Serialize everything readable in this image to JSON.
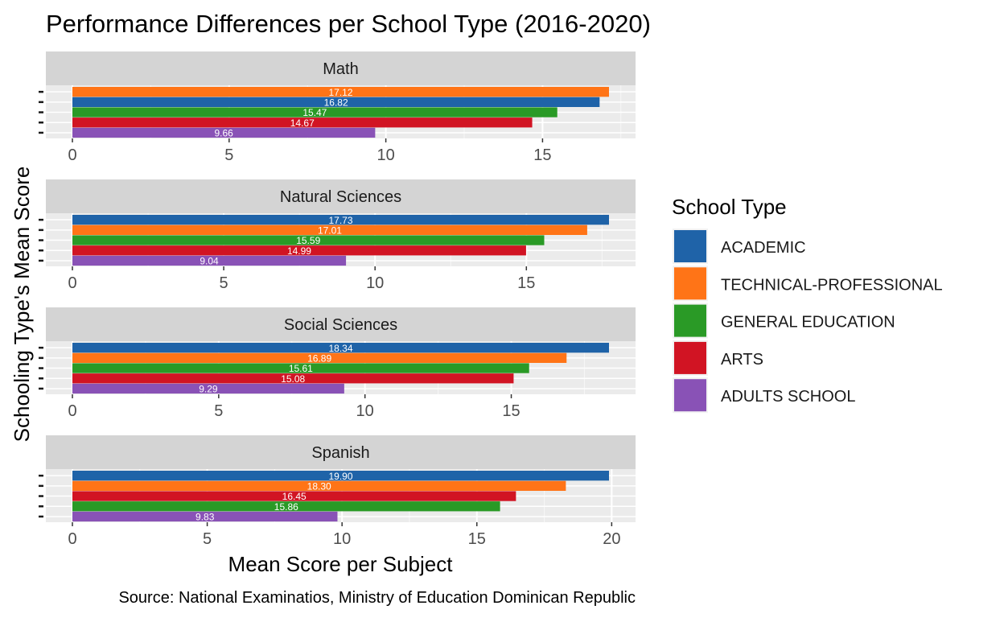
{
  "chart_data": {
    "type": "bar",
    "orientation": "horizontal",
    "faceted": true,
    "title": "Performance Differences per School Type (2016-2020)",
    "xlabel": "Mean Score per Subject",
    "ylabel": "Schooling Type's Mean Score",
    "caption": "Source: National Examinatios, Ministry of Education Dominican Republic",
    "legend": {
      "title": "School Type",
      "position": "right",
      "items": [
        {
          "name": "ACADEMIC",
          "color": "#1F63A8"
        },
        {
          "name": "TECHNICAL-PROFESSIONAL",
          "color": "#FF7417"
        },
        {
          "name": "GENERAL EDUCATION",
          "color": "#2A9A26"
        },
        {
          "name": "ARTS",
          "color": "#D11423"
        },
        {
          "name": "ADULTS SCHOOL",
          "color": "#8952B6"
        }
      ]
    },
    "grid": true,
    "panels": [
      {
        "name": "Math",
        "xlim": [
          0,
          17.12
        ],
        "ticks": [
          "0",
          "5",
          "10",
          "15"
        ],
        "bars": [
          {
            "type": "TECHNICAL-PROFESSIONAL",
            "value": 17.12,
            "label": "17.12"
          },
          {
            "type": "ACADEMIC",
            "value": 16.82,
            "label": "16.82"
          },
          {
            "type": "GENERAL EDUCATION",
            "value": 15.47,
            "label": "15.47"
          },
          {
            "type": "ARTS",
            "value": 14.67,
            "label": "14.67"
          },
          {
            "type": "ADULTS SCHOOL",
            "value": 9.66,
            "label": "9.66"
          }
        ]
      },
      {
        "name": "Natural Sciences",
        "xlim": [
          0,
          17.73
        ],
        "ticks": [
          "0",
          "5",
          "10",
          "15"
        ],
        "bars": [
          {
            "type": "ACADEMIC",
            "value": 17.73,
            "label": "17.73"
          },
          {
            "type": "TECHNICAL-PROFESSIONAL",
            "value": 17.01,
            "label": "17.01"
          },
          {
            "type": "GENERAL EDUCATION",
            "value": 15.59,
            "label": "15.59"
          },
          {
            "type": "ARTS",
            "value": 14.99,
            "label": "14.99"
          },
          {
            "type": "ADULTS SCHOOL",
            "value": 9.04,
            "label": "9.04"
          }
        ]
      },
      {
        "name": "Social Sciences",
        "xlim": [
          0,
          18.34
        ],
        "ticks": [
          "0",
          "5",
          "10",
          "15"
        ],
        "bars": [
          {
            "type": "ACADEMIC",
            "value": 18.34,
            "label": "18.34"
          },
          {
            "type": "TECHNICAL-PROFESSIONAL",
            "value": 16.89,
            "label": "16.89"
          },
          {
            "type": "GENERAL EDUCATION",
            "value": 15.61,
            "label": "15.61"
          },
          {
            "type": "ARTS",
            "value": 15.08,
            "label": "15.08"
          },
          {
            "type": "ADULTS SCHOOL",
            "value": 9.29,
            "label": "9.29"
          }
        ]
      },
      {
        "name": "Spanish",
        "xlim": [
          0,
          19.9
        ],
        "ticks": [
          "0",
          "5",
          "10",
          "15",
          "20"
        ],
        "bars": [
          {
            "type": "ACADEMIC",
            "value": 19.9,
            "label": "19.90"
          },
          {
            "type": "TECHNICAL-PROFESSIONAL",
            "value": 18.3,
            "label": "18.30"
          },
          {
            "type": "ARTS",
            "value": 16.45,
            "label": "16.45"
          },
          {
            "type": "GENERAL EDUCATION",
            "value": 15.86,
            "label": "15.86"
          },
          {
            "type": "ADULTS SCHOOL",
            "value": 9.83,
            "label": "9.83"
          }
        ]
      }
    ]
  }
}
